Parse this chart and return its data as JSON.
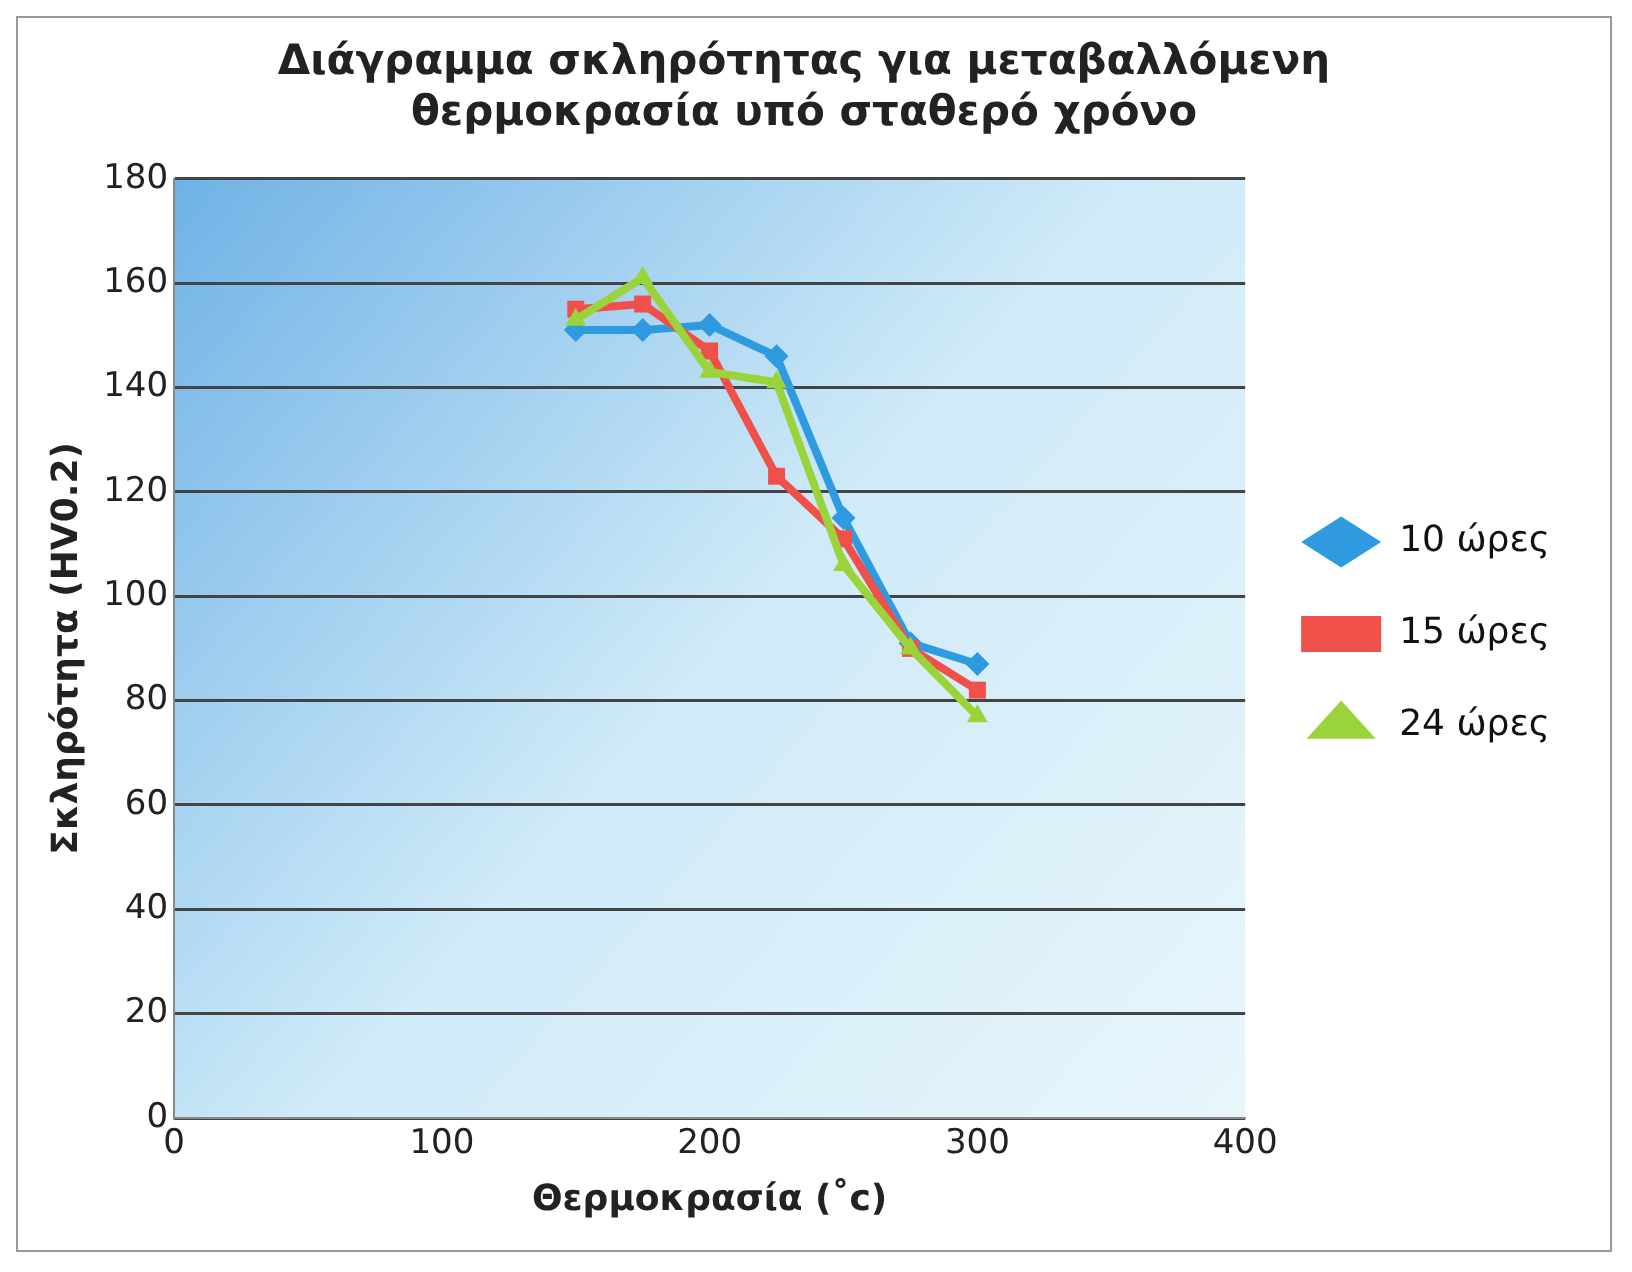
{
  "chart_data": {
    "type": "line",
    "title": "Διάγραμμα σκληρότητας για μεταβαλλόμενη θερμοκρασία υπό σταθερό χρόνο",
    "xlabel": "Θερμοκρασία (˚c)",
    "ylabel": "Σκληρότητα (HV0.2)",
    "x": [
      150,
      175,
      200,
      225,
      250,
      275,
      300
    ],
    "series": [
      {
        "name": "10 ώρες",
        "color": "#2e9be0",
        "marker": "diamond",
        "values": [
          151,
          151,
          152,
          146,
          115,
          91,
          87
        ]
      },
      {
        "name": "15 ώρες",
        "color": "#f0504a",
        "marker": "square",
        "values": [
          155,
          156,
          147,
          123,
          111,
          90,
          82
        ]
      },
      {
        "name": "24 ώρες",
        "color": "#9ad43a",
        "marker": "triangle",
        "values": [
          153,
          161,
          143,
          141,
          106,
          90,
          77
        ]
      }
    ],
    "xlim": [
      0,
      400
    ],
    "xticks": [
      0,
      100,
      200,
      300,
      400
    ],
    "ylim": [
      0,
      180
    ],
    "yticks": [
      0,
      20,
      40,
      60,
      80,
      100,
      120,
      140,
      160,
      180
    ],
    "grid": "y",
    "legend": "right",
    "line_style": "solid"
  }
}
